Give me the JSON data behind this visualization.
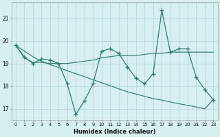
{
  "x": [
    0,
    1,
    2,
    3,
    4,
    5,
    6,
    7,
    8,
    9,
    10,
    11,
    12,
    13,
    14,
    15,
    16,
    17,
    18,
    19,
    20,
    21,
    22,
    23
  ],
  "y_main": [
    19.8,
    19.3,
    19.0,
    19.2,
    19.15,
    19.0,
    18.1,
    16.75,
    17.35,
    18.1,
    19.55,
    19.65,
    19.45,
    18.85,
    18.35,
    18.1,
    18.55,
    21.35,
    19.5,
    19.65,
    19.65,
    18.4,
    17.85,
    17.4
  ],
  "y_trend_flat": [
    19.8,
    19.25,
    19.05,
    19.05,
    19.0,
    19.0,
    19.0,
    19.05,
    19.1,
    19.15,
    19.25,
    19.3,
    19.35,
    19.35,
    19.35,
    19.4,
    19.45,
    19.45,
    19.5,
    19.5,
    19.5,
    19.5,
    19.5,
    19.5
  ],
  "y_trend_down": [
    19.8,
    19.55,
    19.3,
    19.1,
    18.95,
    18.82,
    18.68,
    18.55,
    18.42,
    18.28,
    18.15,
    18.02,
    17.88,
    17.75,
    17.65,
    17.55,
    17.45,
    17.38,
    17.3,
    17.22,
    17.15,
    17.08,
    17.0,
    17.4
  ],
  "line_color": "#2e7d6e",
  "bg_color": "#d8efef",
  "grid_color": "#b8d8d8",
  "xlabel": "Humidex (Indice chaleur)",
  "ylabel_values": [
    17,
    18,
    19,
    20,
    21
  ],
  "ylim": [
    16.5,
    21.7
  ],
  "xlim": [
    -0.5,
    23.5
  ]
}
